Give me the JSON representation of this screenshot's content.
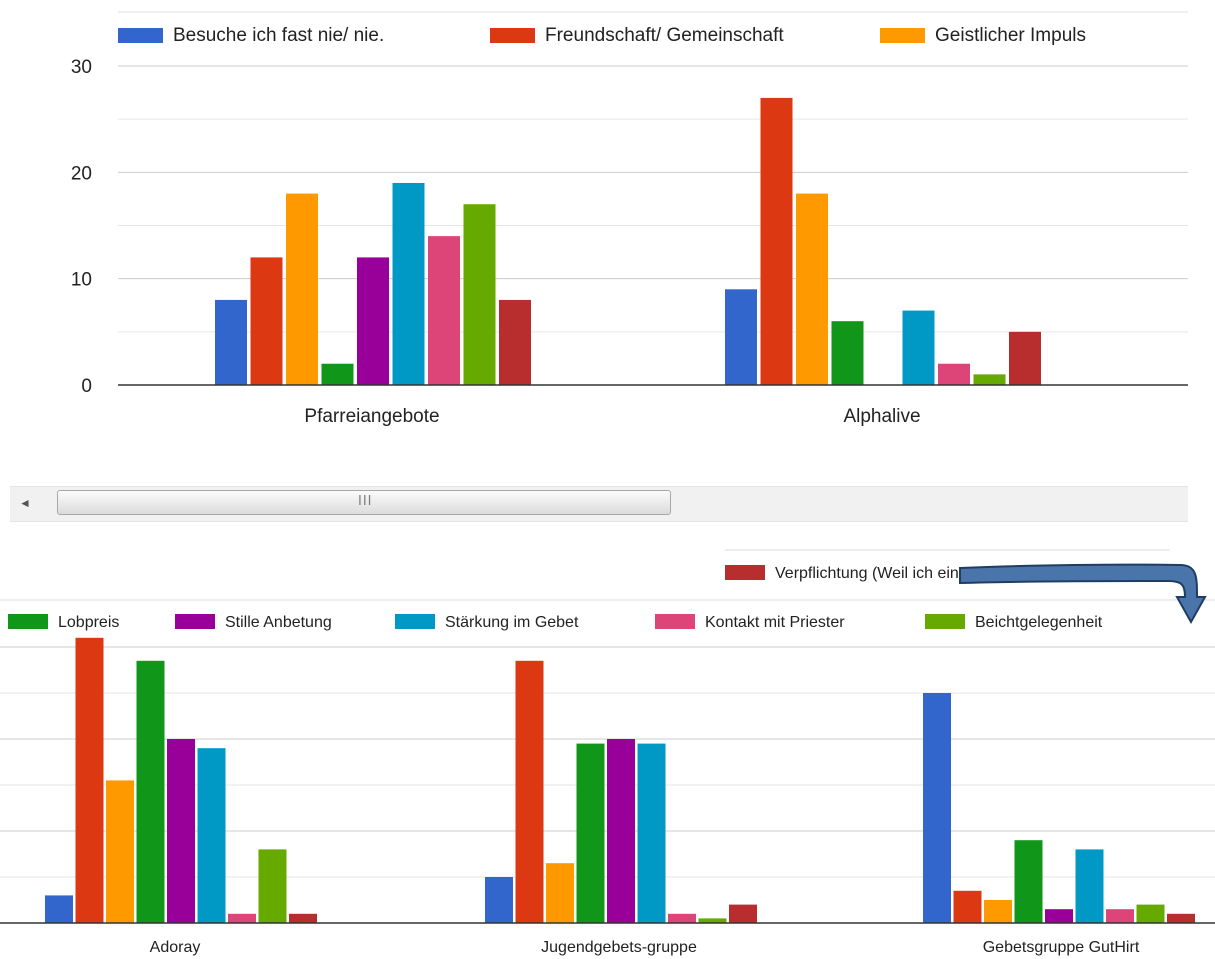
{
  "colors": {
    "grid": "#cccccc",
    "axis": "#333333",
    "text": "#222222"
  },
  "chart_data": [
    {
      "type": "bar",
      "ylim": [
        0,
        30
      ],
      "yticks": [
        "0",
        "10",
        "20",
        "30"
      ],
      "grid": true,
      "legend_position": "top",
      "categories": [
        "Pfarreiangebote",
        "Alphalive"
      ],
      "series": [
        {
          "name": "Besuche ich fast nie/ nie.",
          "color": "#3366cc",
          "values": [
            8,
            9
          ]
        },
        {
          "name": "Freundschaft/ Gemeinschaft",
          "color": "#dc3912",
          "values": [
            12,
            27
          ]
        },
        {
          "name": "Geistlicher Impuls",
          "color": "#ff9900",
          "values": [
            18,
            18
          ]
        },
        {
          "name": "",
          "color": "#109618",
          "values": [
            2,
            6
          ]
        },
        {
          "name": "",
          "color": "#990099",
          "values": [
            12,
            0
          ]
        },
        {
          "name": "",
          "color": "#0099c6",
          "values": [
            19,
            7
          ]
        },
        {
          "name": "",
          "color": "#dd4477",
          "values": [
            14,
            2
          ]
        },
        {
          "name": "",
          "color": "#66aa00",
          "values": [
            17,
            1
          ]
        },
        {
          "name": "",
          "color": "#b82e2e",
          "values": [
            8,
            5
          ]
        }
      ]
    },
    {
      "type": "bar",
      "ylim": [
        0,
        30
      ],
      "grid": true,
      "legend_position": "top",
      "categories": [
        "Adoray",
        "Jugendgebets-gruppe",
        "Gebetsgruppe GutHirt"
      ],
      "series": [
        {
          "name": "",
          "color": "#3366cc",
          "values": [
            3,
            5,
            25
          ]
        },
        {
          "name": "",
          "color": "#dc3912",
          "values": [
            31,
            28.5,
            3.5
          ]
        },
        {
          "name": "",
          "color": "#ff9900",
          "values": [
            15.5,
            6.5,
            2.5
          ]
        },
        {
          "name": "Lobpreis",
          "color": "#109618",
          "values": [
            28.5,
            19.5,
            9
          ]
        },
        {
          "name": "Stille Anbetung",
          "color": "#990099",
          "values": [
            20,
            20,
            1.5
          ]
        },
        {
          "name": "Stärkung im Gebet",
          "color": "#0099c6",
          "values": [
            19,
            19.5,
            8
          ]
        },
        {
          "name": "Kontakt mit Priester",
          "color": "#dd4477",
          "values": [
            1,
            1,
            1.5
          ]
        },
        {
          "name": "Beichtgelegenheit",
          "color": "#66aa00",
          "values": [
            8,
            0.5,
            2
          ]
        },
        {
          "name": "Verpflichtung (Weil ich eingebunden bin...)",
          "color": "#b82e2e",
          "values": [
            1,
            2,
            1
          ]
        }
      ]
    }
  ],
  "scrollbar": {
    "left_arrow": "◄",
    "grip": "III"
  }
}
